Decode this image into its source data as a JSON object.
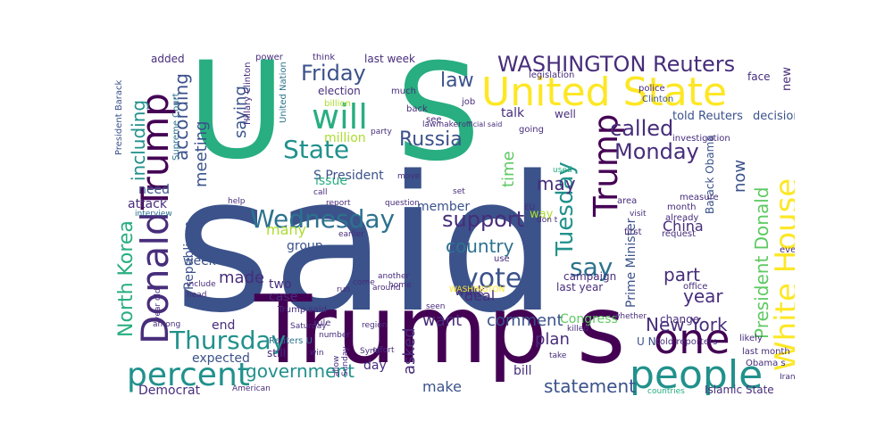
{
  "colors": {
    "dark_purple": "#440154",
    "indigo": "#472d7b",
    "slate_blue": "#3b528b",
    "teal_blue": "#2c728e",
    "teal": "#21918c",
    "green_teal": "#28ae80",
    "green": "#5ec962",
    "lime": "#addc30",
    "yellow": "#fde725"
  },
  "words": [
    {
      "id": "said",
      "text": "said",
      "color": "#3b528b"
    },
    {
      "id": "trump-s",
      "text": "Trump s",
      "color": "#440154"
    },
    {
      "id": "u",
      "text": "U",
      "color": "#28ae80"
    },
    {
      "id": "s",
      "text": "S",
      "color": "#28ae80"
    },
    {
      "id": "united-state",
      "text": "United State",
      "color": "#fde725"
    },
    {
      "id": "will",
      "text": "will",
      "color": "#28ae80"
    },
    {
      "id": "trump-left",
      "text": "Trump",
      "color": "#440154"
    },
    {
      "id": "donald",
      "text": "Donald",
      "color": "#472d7b"
    },
    {
      "id": "trump-right",
      "text": "Trump",
      "color": "#440154"
    },
    {
      "id": "white-house",
      "text": "White House",
      "color": "#fde725"
    },
    {
      "id": "one",
      "text": "one",
      "color": "#440154"
    },
    {
      "id": "people",
      "text": "people",
      "color": "#21918c"
    },
    {
      "id": "percent",
      "text": "percent",
      "color": "#21918c"
    },
    {
      "id": "washington-reuters",
      "text": "WASHINGTON Reuters",
      "color": "#472d7b"
    },
    {
      "id": "wednesday",
      "text": "Wednesday",
      "color": "#2c728e"
    },
    {
      "id": "thursday",
      "text": "Thursday",
      "color": "#21918c"
    },
    {
      "id": "state",
      "text": "State",
      "color": "#21918c"
    },
    {
      "id": "vote",
      "text": "vote",
      "color": "#3b528b"
    },
    {
      "id": "say",
      "text": "say",
      "color": "#2c728e"
    },
    {
      "id": "monday",
      "text": "Monday",
      "color": "#472d7b"
    },
    {
      "id": "tuesday",
      "text": "Tuesday",
      "color": "#21918c"
    },
    {
      "id": "north-korea",
      "text": "North Korea",
      "color": "#28ae80"
    },
    {
      "id": "new-york",
      "text": "New York",
      "color": "#472d7b"
    },
    {
      "id": "president-donald",
      "text": "President Donald",
      "color": "#5ec962"
    },
    {
      "id": "friday",
      "text": "Friday",
      "color": "#3b528b"
    },
    {
      "id": "support",
      "text": "support",
      "color": "#472d7b"
    },
    {
      "id": "russia",
      "text": "Russia",
      "color": "#3b528b"
    },
    {
      "id": "called",
      "text": "called",
      "color": "#472d7b"
    },
    {
      "id": "law",
      "text": "law",
      "color": "#3b528b"
    },
    {
      "id": "including",
      "text": "including",
      "color": "#21918c"
    },
    {
      "id": "according",
      "text": "according",
      "color": "#3b528b"
    },
    {
      "id": "government",
      "text": "government",
      "color": "#21918c"
    },
    {
      "id": "statement",
      "text": "statement",
      "color": "#3b528b"
    },
    {
      "id": "country",
      "text": "country",
      "color": "#2c728e"
    },
    {
      "id": "comment",
      "text": "comment",
      "color": "#3b528b"
    },
    {
      "id": "made",
      "text": "made",
      "color": "#472d7b"
    },
    {
      "id": "year-right",
      "text": "year",
      "color": "#472d7b"
    },
    {
      "id": "part",
      "text": "part",
      "color": "#472d7b"
    },
    {
      "id": "saying",
      "text": "saying",
      "color": "#3b528b"
    },
    {
      "id": "meeting",
      "text": "meeting",
      "color": "#3b528b"
    },
    {
      "id": "time",
      "text": "time",
      "color": "#5ec962"
    },
    {
      "id": "now",
      "text": "now",
      "color": "#3b528b"
    },
    {
      "id": "may",
      "text": "may",
      "color": "#472d7b"
    },
    {
      "id": "china",
      "text": "China",
      "color": "#472d7b"
    },
    {
      "id": "make",
      "text": "make",
      "color": "#3b528b"
    },
    {
      "id": "want",
      "text": "want",
      "color": "#472d7b"
    },
    {
      "id": "plan",
      "text": "plan",
      "color": "#472d7b"
    },
    {
      "id": "asked",
      "text": "asked",
      "color": "#472d7b"
    },
    {
      "id": "deal",
      "text": "deal",
      "color": "#472d7b"
    },
    {
      "id": "two",
      "text": "two",
      "color": "#472d7b"
    },
    {
      "id": "many",
      "text": "many",
      "color": "#addc30"
    },
    {
      "id": "million",
      "text": "million",
      "color": "#addc30"
    },
    {
      "id": "prime-minister",
      "text": "Prime Minister",
      "color": "#3b528b"
    },
    {
      "id": "republican",
      "text": "Republican",
      "color": "#3b528b"
    },
    {
      "id": "democrat",
      "text": "Democrat",
      "color": "#472d7b"
    },
    {
      "id": "congress",
      "text": "Congress",
      "color": "#5ec962"
    },
    {
      "id": "s-president",
      "text": "S President",
      "color": "#3b528b"
    },
    {
      "id": "told-reuters",
      "text": "told Reuters",
      "color": "#3b528b"
    },
    {
      "id": "decision",
      "text": "decision",
      "color": "#3b528b"
    },
    {
      "id": "expected",
      "text": "expected",
      "color": "#3b528b"
    },
    {
      "id": "need",
      "text": "need",
      "color": "#3b528b"
    },
    {
      "id": "attack",
      "text": "attack",
      "color": "#472d7b"
    },
    {
      "id": "week",
      "text": "week",
      "color": "#3b528b"
    },
    {
      "id": "end",
      "text": "end",
      "color": "#472d7b"
    },
    {
      "id": "work",
      "text": "work",
      "color": "#472d7b"
    },
    {
      "id": "case",
      "text": "case",
      "color": "#472d7b"
    },
    {
      "id": "day",
      "text": "day",
      "color": "#472d7b"
    },
    {
      "id": "bill",
      "text": "bill",
      "color": "#472d7b"
    },
    {
      "id": "group",
      "text": "group",
      "color": "#3b528b"
    },
    {
      "id": "member",
      "text": "member",
      "color": "#3b528b"
    },
    {
      "id": "issue",
      "text": "issue",
      "color": "#28ae80"
    },
    {
      "id": "talk",
      "text": "talk",
      "color": "#472d7b"
    },
    {
      "id": "election",
      "text": "election",
      "color": "#472d7b"
    },
    {
      "id": "last-week-top",
      "text": "last week",
      "color": "#472d7b"
    },
    {
      "id": "added",
      "text": "added",
      "color": "#472d7b"
    },
    {
      "id": "islamic-state",
      "text": "Islamic State",
      "color": "#472d7b"
    },
    {
      "id": "campaign",
      "text": "campaign",
      "color": "#472d7b"
    },
    {
      "id": "last-year",
      "text": "last year",
      "color": "#472d7b"
    },
    {
      "id": "told-reporters",
      "text": "told reporters",
      "color": "#472d7b"
    },
    {
      "id": "barack-obama",
      "text": "Barack Obama",
      "color": "#3b528b"
    },
    {
      "id": "u-n",
      "text": "U N",
      "color": "#3b528b"
    },
    {
      "id": "change",
      "text": "change",
      "color": "#472d7b"
    },
    {
      "id": "still",
      "text": "still",
      "color": "#472d7b"
    },
    {
      "id": "trump-said",
      "text": "Trump said",
      "color": "#472d7b"
    },
    {
      "id": "investigation",
      "text": "investigation",
      "color": "#472d7b"
    },
    {
      "id": "legislation",
      "text": "legislation",
      "color": "#472d7b"
    },
    {
      "id": "much",
      "text": "much",
      "color": "#472d7b"
    },
    {
      "id": "power",
      "text": "power",
      "color": "#472d7b"
    },
    {
      "id": "think",
      "text": "think",
      "color": "#472d7b"
    },
    {
      "id": "well",
      "text": "well",
      "color": "#472d7b"
    },
    {
      "id": "face",
      "text": "face",
      "color": "#472d7b"
    },
    {
      "id": "police",
      "text": "police",
      "color": "#472d7b"
    },
    {
      "id": "clinton",
      "text": "Clinton",
      "color": "#3b528b"
    },
    {
      "id": "hillary-clinton",
      "text": "Hillary Clinton",
      "color": "#472d7b"
    },
    {
      "id": "united-nation",
      "text": "United Nation",
      "color": "#2c728e"
    },
    {
      "id": "supreme-court",
      "text": "Supreme Court",
      "color": "#2c728e"
    },
    {
      "id": "president-barack",
      "text": "President Barack",
      "color": "#3b528b"
    },
    {
      "id": "lawmaker",
      "text": "lawmaker",
      "color": "#472d7b"
    },
    {
      "id": "billion",
      "text": "billion",
      "color": "#addc30"
    },
    {
      "id": "party",
      "text": "party",
      "color": "#472d7b"
    },
    {
      "id": "see",
      "text": "see",
      "color": "#472d7b"
    },
    {
      "id": "back",
      "text": "back",
      "color": "#472d7b"
    },
    {
      "id": "job",
      "text": "job",
      "color": "#472d7b"
    },
    {
      "id": "going",
      "text": "going",
      "color": "#472d7b"
    },
    {
      "id": "official-said",
      "text": "official said",
      "color": "#472d7b"
    },
    {
      "id": "way",
      "text": "way",
      "color": "#addc30"
    },
    {
      "id": "new",
      "text": "new",
      "color": "#472d7b"
    },
    {
      "id": "month",
      "text": "month",
      "color": "#472d7b"
    },
    {
      "id": "already",
      "text": "already",
      "color": "#472d7b"
    },
    {
      "id": "request",
      "text": "request",
      "color": "#472d7b"
    },
    {
      "id": "even",
      "text": "even",
      "color": "#472d7b"
    },
    {
      "id": "last-month",
      "text": "last month",
      "color": "#472d7b"
    },
    {
      "id": "obama-s",
      "text": "Obama s",
      "color": "#472d7b"
    },
    {
      "id": "office",
      "text": "office",
      "color": "#472d7b"
    },
    {
      "id": "likely",
      "text": "likely",
      "color": "#472d7b"
    },
    {
      "id": "iran",
      "text": "Iran",
      "color": "#472d7b"
    },
    {
      "id": "countries",
      "text": "countries",
      "color": "#28ae80"
    },
    {
      "id": "measure",
      "text": "measure",
      "color": "#472d7b"
    },
    {
      "id": "area",
      "text": "area",
      "color": "#472d7b"
    },
    {
      "id": "first",
      "text": "first",
      "color": "#472d7b"
    },
    {
      "id": "visit",
      "text": "visit",
      "color": "#472d7b"
    },
    {
      "id": "used",
      "text": "used",
      "color": "#28ae80"
    },
    {
      "id": "eu",
      "text": "EU",
      "color": "#472d7b"
    },
    {
      "id": "don-t",
      "text": "don t",
      "color": "#472d7b"
    },
    {
      "id": "move",
      "text": "move",
      "color": "#472d7b"
    },
    {
      "id": "set",
      "text": "set",
      "color": "#472d7b"
    },
    {
      "id": "call",
      "text": "call",
      "color": "#472d7b"
    },
    {
      "id": "report",
      "text": "report",
      "color": "#472d7b"
    },
    {
      "id": "question",
      "text": "question",
      "color": "#472d7b"
    },
    {
      "id": "help",
      "text": "help",
      "color": "#472d7b"
    },
    {
      "id": "interview",
      "text": "interview",
      "color": "#2c728e"
    },
    {
      "id": "earlier",
      "text": "earlier",
      "color": "#472d7b"
    },
    {
      "id": "run",
      "text": "run",
      "color": "#472d7b"
    },
    {
      "id": "around",
      "text": "around",
      "color": "#472d7b"
    },
    {
      "id": "include",
      "text": "include",
      "color": "#472d7b"
    },
    {
      "id": "head",
      "text": "head",
      "color": "#472d7b"
    },
    {
      "id": "another",
      "text": "another",
      "color": "#472d7b"
    },
    {
      "id": "home",
      "text": "home",
      "color": "#472d7b"
    },
    {
      "id": "come",
      "text": "come",
      "color": "#472d7b"
    },
    {
      "id": "use",
      "text": "use",
      "color": "#472d7b"
    },
    {
      "id": "washington-small",
      "text": "WASHINGTON",
      "color": "#fde725"
    },
    {
      "id": "seen",
      "text": "seen",
      "color": "#472d7b"
    },
    {
      "id": "among",
      "text": "among",
      "color": "#472d7b"
    },
    {
      "id": "rule",
      "text": "rule",
      "color": "#472d7b"
    },
    {
      "id": "region",
      "text": "region",
      "color": "#472d7b"
    },
    {
      "id": "saturday",
      "text": "Saturday",
      "color": "#472d7b"
    },
    {
      "id": "number",
      "text": "number",
      "color": "#472d7b"
    },
    {
      "id": "syria",
      "text": "Syria",
      "color": "#472d7b"
    },
    {
      "id": "whether",
      "text": "whether",
      "color": "#472d7b"
    },
    {
      "id": "killed",
      "text": "killed",
      "color": "#472d7b"
    },
    {
      "id": "take",
      "text": "take",
      "color": "#472d7b"
    },
    {
      "id": "effort",
      "text": "effort",
      "color": "#472d7b"
    },
    {
      "id": "sunday",
      "text": "Sunday",
      "color": "#472d7b"
    },
    {
      "id": "allow",
      "text": "allow",
      "color": "#472d7b"
    },
    {
      "id": "win",
      "text": "win",
      "color": "#472d7b"
    },
    {
      "id": "reuters-u",
      "text": "Reuters U",
      "color": "#2c728e"
    },
    {
      "id": "american",
      "text": "American",
      "color": "#472d7b"
    },
    {
      "id": "year-old",
      "text": "year old",
      "color": "#472d7b"
    }
  ]
}
